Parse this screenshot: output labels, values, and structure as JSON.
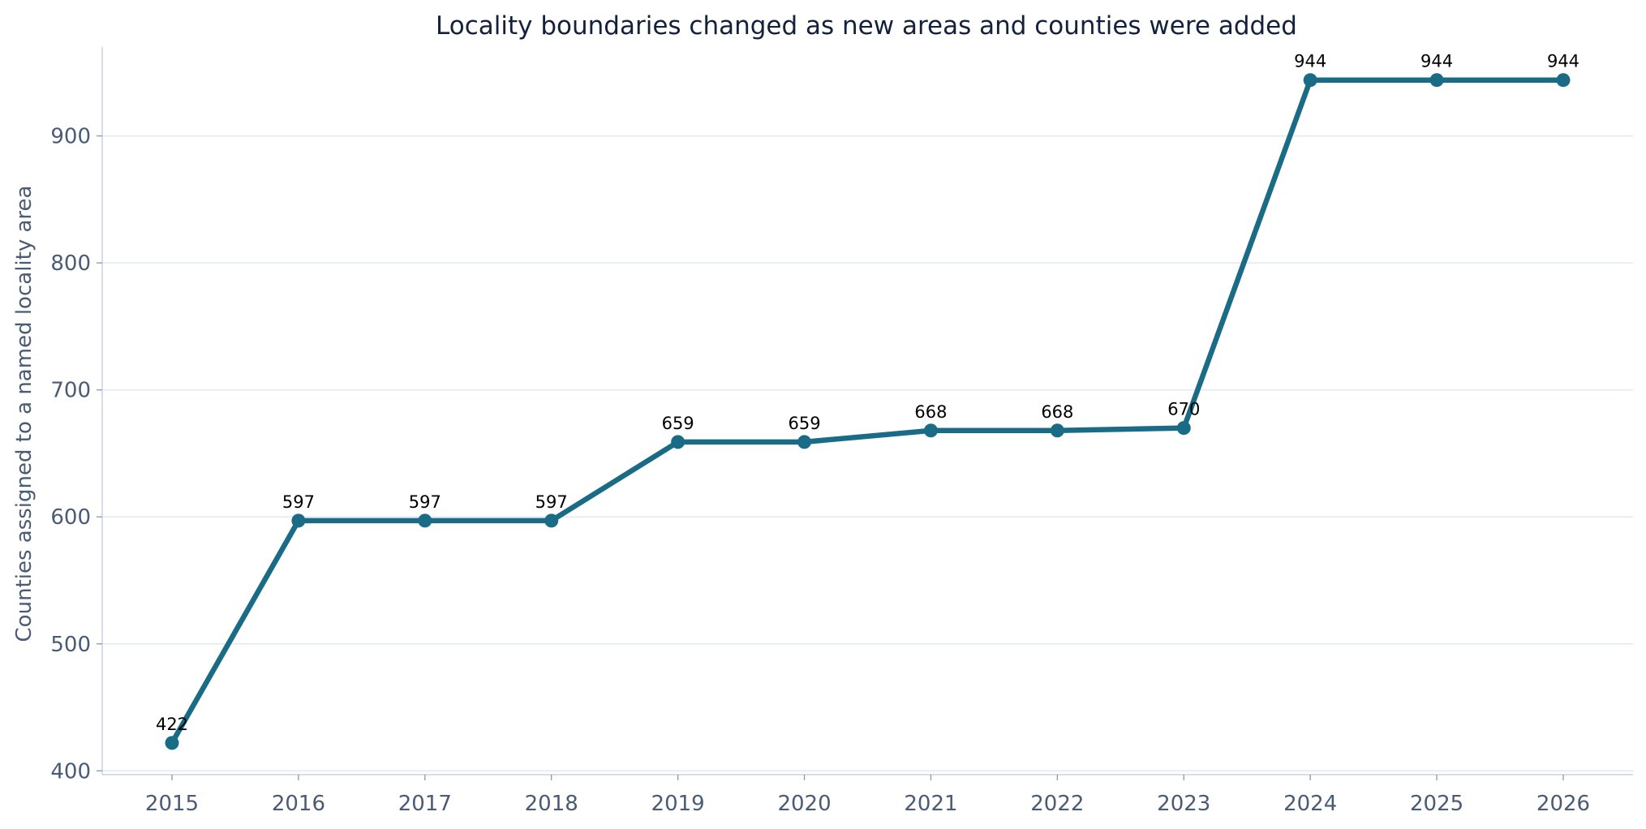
{
  "chart_data": {
    "type": "line",
    "title": "Locality boundaries changed as new areas and counties were added",
    "xlabel": "",
    "ylabel": "Counties assigned to a named locality area",
    "x": [
      "2015",
      "2016",
      "2017",
      "2018",
      "2019",
      "2020",
      "2021",
      "2022",
      "2023",
      "2024",
      "2025",
      "2026"
    ],
    "series": [
      {
        "values": [
          422,
          597,
          597,
          597,
          659,
          659,
          668,
          668,
          670,
          944,
          944,
          944
        ]
      }
    ],
    "data_labels": [
      "422",
      "597",
      "597",
      "597",
      "659",
      "659",
      "668",
      "668",
      "670",
      "944",
      "944",
      "944"
    ],
    "yticks": [
      400,
      500,
      600,
      700,
      800,
      900
    ],
    "ylim": [
      397,
      970
    ],
    "grid": "horizontal",
    "legend": "none",
    "colors": {
      "line": "#1a6b85",
      "grid": "#e3e8f2",
      "text": "#14213d",
      "tick_text": "#4a5b75"
    }
  }
}
